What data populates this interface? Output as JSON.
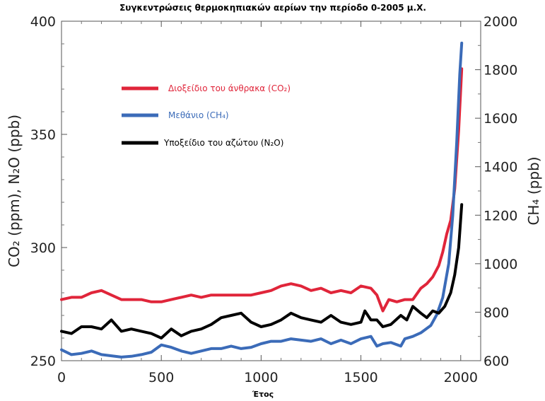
{
  "chart_data": {
    "type": "line",
    "title": "Συγκεντρώσεις θερμοκηπιακών αερίων την περίοδο 0-2005 μ.Χ.",
    "xlabel": "Έτος",
    "ylabel_left": "CO₂ (ppm), N₂O (ppb)",
    "ylabel_right": "CH₄ (ppb)",
    "xlim": [
      0,
      2100
    ],
    "ylim_left": [
      250,
      400
    ],
    "ylim_right": [
      600,
      2000
    ],
    "x_ticks": [
      "0",
      "500",
      "1000",
      "1500",
      "2000"
    ],
    "y_left_ticks": [
      "250",
      "300",
      "350",
      "400"
    ],
    "y_right_ticks": [
      "600",
      "800",
      "1000",
      "1200",
      "1400",
      "1600",
      "1800",
      "2000"
    ],
    "grid": false,
    "legend_position": "top-left",
    "series": [
      {
        "name": "Διοξείδιο του άνθρακα (CO₂)",
        "axis": "left",
        "color": "#e0253a",
        "x": [
          0,
          50,
          100,
          150,
          200,
          250,
          300,
          350,
          400,
          450,
          500,
          550,
          600,
          650,
          700,
          750,
          800,
          850,
          900,
          950,
          1000,
          1050,
          1100,
          1150,
          1200,
          1250,
          1300,
          1350,
          1400,
          1450,
          1500,
          1550,
          1580,
          1610,
          1640,
          1680,
          1720,
          1760,
          1800,
          1830,
          1860,
          1890,
          1910,
          1930,
          1950,
          1970,
          1990,
          2005
        ],
        "values": [
          277,
          278,
          278,
          280,
          281,
          279,
          277,
          277,
          277,
          276,
          276,
          277,
          278,
          279,
          278,
          279,
          279,
          279,
          279,
          279,
          280,
          281,
          283,
          284,
          283,
          281,
          282,
          280,
          281,
          280,
          283,
          282,
          279,
          272,
          277,
          276,
          277,
          277,
          282,
          284,
          287,
          292,
          298,
          306,
          312,
          326,
          352,
          379
        ]
      },
      {
        "name": "Μεθάνιο (CH₄)",
        "axis": "right",
        "color": "#3b6bb8",
        "x": [
          0,
          50,
          100,
          150,
          200,
          250,
          300,
          350,
          400,
          450,
          500,
          550,
          600,
          650,
          700,
          750,
          800,
          850,
          900,
          950,
          1000,
          1050,
          1100,
          1150,
          1200,
          1250,
          1300,
          1350,
          1400,
          1450,
          1500,
          1550,
          1580,
          1610,
          1650,
          1700,
          1720,
          1760,
          1800,
          1850,
          1880,
          1910,
          1940,
          1960,
          1980,
          1995,
          2005
        ],
        "values": [
          645,
          625,
          630,
          640,
          625,
          620,
          615,
          618,
          625,
          635,
          665,
          655,
          640,
          630,
          640,
          650,
          650,
          660,
          650,
          655,
          670,
          680,
          680,
          690,
          685,
          680,
          690,
          670,
          685,
          670,
          690,
          700,
          660,
          670,
          675,
          660,
          690,
          700,
          715,
          745,
          790,
          860,
          1000,
          1200,
          1500,
          1780,
          1910
        ]
      },
      {
        "name": "Υποξείδιο του αζώτου (N₂O)",
        "axis": "left",
        "color": "#000000",
        "x": [
          0,
          50,
          100,
          150,
          200,
          250,
          300,
          350,
          400,
          450,
          500,
          550,
          600,
          650,
          700,
          750,
          800,
          850,
          900,
          950,
          1000,
          1050,
          1100,
          1150,
          1200,
          1250,
          1300,
          1350,
          1400,
          1450,
          1500,
          1520,
          1550,
          1580,
          1610,
          1650,
          1700,
          1730,
          1760,
          1800,
          1830,
          1860,
          1890,
          1920,
          1950,
          1970,
          1990,
          2005
        ],
        "values": [
          263,
          262,
          265,
          265,
          264,
          268,
          263,
          264,
          263,
          262,
          260,
          264,
          261,
          263,
          264,
          266,
          269,
          270,
          271,
          267,
          265,
          266,
          268,
          271,
          269,
          268,
          267,
          270,
          267,
          266,
          267,
          272,
          268,
          268,
          265,
          266,
          270,
          268,
          274,
          271,
          269,
          272,
          271,
          274,
          280,
          288,
          300,
          319
        ]
      }
    ]
  }
}
